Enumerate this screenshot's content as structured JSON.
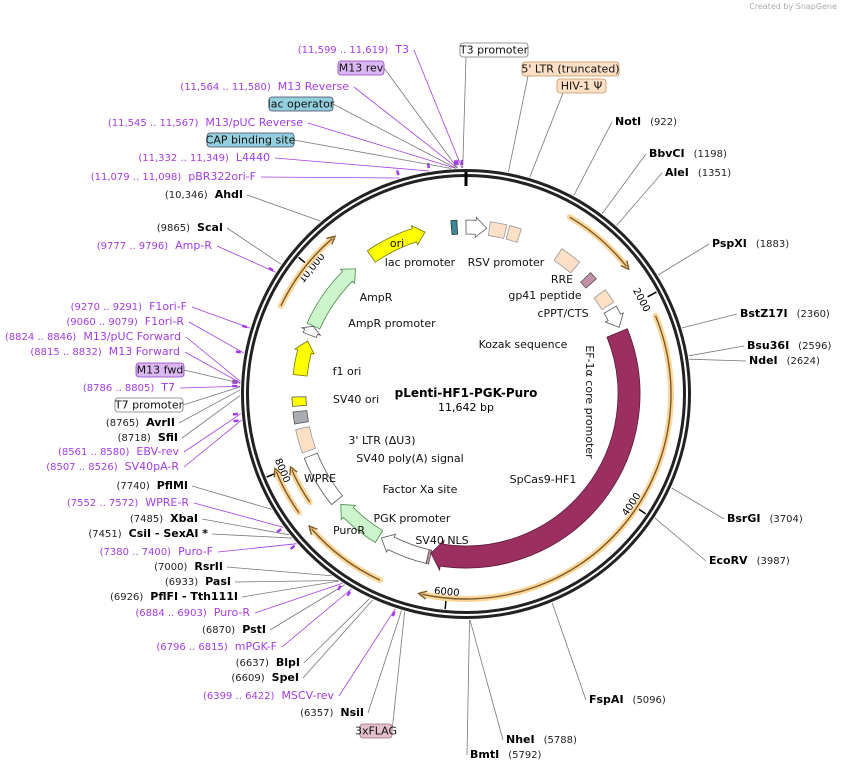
{
  "credit": "Created by SnapGene",
  "plasmid": {
    "name": "pLenti-HF1-PGK-Puro",
    "size_label": "11,642 bp",
    "total_bp": 11642
  },
  "ticks": [
    {
      "bp": 2000,
      "label": "2000"
    },
    {
      "bp": 4000,
      "label": "4000"
    },
    {
      "bp": 6000,
      "label": "6000"
    },
    {
      "bp": 8000,
      "label": "8000"
    },
    {
      "bp": 10000,
      "label": "10,000"
    }
  ],
  "enzymes_right": [
    {
      "name": "NotI",
      "pos": "(922)",
      "bp": 922
    },
    {
      "name": "BbvCI",
      "pos": "(1198)",
      "bp": 1198
    },
    {
      "name": "AleI",
      "pos": "(1351)",
      "bp": 1351
    },
    {
      "name": "PspXI",
      "pos": "(1883)",
      "bp": 1883
    },
    {
      "name": "BstZ17I",
      "pos": "(2360)",
      "bp": 2360
    },
    {
      "name": "Bsu36I",
      "pos": "(2596)",
      "bp": 2596
    },
    {
      "name": "NdeI",
      "pos": "(2624)",
      "bp": 2624
    },
    {
      "name": "BsrGI",
      "pos": "(3704)",
      "bp": 3704
    },
    {
      "name": "EcoRV",
      "pos": "(3987)",
      "bp": 3987
    },
    {
      "name": "FspAI",
      "pos": "(5096)",
      "bp": 5096
    },
    {
      "name": "NheI",
      "pos": "(5788)",
      "bp": 5788
    },
    {
      "name": "BmtI",
      "pos": "(5792)",
      "bp": 5792
    }
  ],
  "enzymes_left": [
    {
      "name": "AhdI",
      "pos": "(10,346)",
      "bp": 10346
    },
    {
      "name": "ScaI",
      "pos": "(9865)",
      "bp": 9865
    },
    {
      "name": "NsiI",
      "pos": "(6357)",
      "bp": 6357
    },
    {
      "name": "AvrII",
      "pos": "(8765)",
      "bp": 8765
    },
    {
      "name": "SfiI",
      "pos": "(8718)",
      "bp": 8718
    },
    {
      "name": "PflMI",
      "pos": "(7740)",
      "bp": 7740
    },
    {
      "name": "XbaI",
      "pos": "(7485)",
      "bp": 7485
    },
    {
      "name": "CsiI  - SexAI *",
      "pos": "(7451)",
      "bp": 7451
    },
    {
      "name": "RsrII",
      "pos": "(7000)",
      "bp": 7000
    },
    {
      "name": "PasI",
      "pos": "(6933)",
      "bp": 6933
    },
    {
      "name": "PflFI  - Tth111I",
      "pos": "(6926)",
      "bp": 6926
    },
    {
      "name": "PstI",
      "pos": "(6870)",
      "bp": 6870
    },
    {
      "name": "BlpI",
      "pos": "(6637)",
      "bp": 6637
    },
    {
      "name": "SpeI",
      "pos": "(6609)",
      "bp": 6609
    }
  ],
  "primers": [
    {
      "name": "T3",
      "range": "(11,599 .. 11,619)",
      "bp": 11609
    },
    {
      "name": "M13 Reverse",
      "range": "(11,564 .. 11,580)",
      "bp": 11572
    },
    {
      "name": "M13/pUC Reverse",
      "range": "(11,545 .. 11,567)",
      "bp": 11556
    },
    {
      "name": "L4440",
      "range": "(11,332 .. 11,349)",
      "bp": 11340
    },
    {
      "name": "pBR322ori-F",
      "range": "(11,079 .. 11,098)",
      "bp": 11088
    },
    {
      "name": "Amp-R",
      "range": "(9777 .. 9796)",
      "bp": 9786
    },
    {
      "name": "F1ori-F",
      "range": "(9270 .. 9291)",
      "bp": 9280
    },
    {
      "name": "F1ori-R",
      "range": "(9060 .. 9079)",
      "bp": 9070
    },
    {
      "name": "M13/pUC Forward",
      "range": "(8824 .. 8846)",
      "bp": 8835
    },
    {
      "name": "M13 Forward",
      "range": "(8815 .. 8832)",
      "bp": 8823
    },
    {
      "name": "T7",
      "range": "(8786 .. 8805)",
      "bp": 8795
    },
    {
      "name": "EBV-rev",
      "range": "(8561 .. 8580)",
      "bp": 8570
    },
    {
      "name": "SV40pA-R",
      "range": "(8507 .. 8526)",
      "bp": 8516
    },
    {
      "name": "WPRE-R",
      "range": "(7552 .. 7572)",
      "bp": 7562
    },
    {
      "name": "Puro-F",
      "range": "(7380 .. 7400)",
      "bp": 7390
    },
    {
      "name": "Puro-R",
      "range": "(6884 .. 6903)",
      "bp": 6893
    },
    {
      "name": "mPGK-F",
      "range": "(6796 .. 6815)",
      "bp": 6805
    },
    {
      "name": "MSCV-rev",
      "range": "(6399 .. 6422)",
      "bp": 6410
    }
  ],
  "boxed_labels": [
    {
      "name": "M13 rev",
      "bp": 11572,
      "fill": "#dcb8f2",
      "stroke": "#8a3cc0"
    },
    {
      "name": "lac operator",
      "bp": 11560,
      "fill": "#93cfdc",
      "stroke": "#446"
    },
    {
      "name": "CAP binding site",
      "bp": 11520,
      "fill": "#93cfdc",
      "stroke": "#446"
    },
    {
      "name": "T3 promoter",
      "bp": 11615,
      "fill": "#ffffff",
      "stroke": "#777"
    },
    {
      "name": "5' LTR (truncated)",
      "bp": 350,
      "fill": "#fde0c5",
      "stroke": "#c9905a"
    },
    {
      "name": "HIV-1 Ψ",
      "bp": 530,
      "fill": "#fde0c5",
      "stroke": "#c9905a"
    },
    {
      "name": "M13 fwd",
      "bp": 8820,
      "fill": "#dcb8f2",
      "stroke": "#8a3cc0"
    },
    {
      "name": "T7 promoter",
      "bp": 8790,
      "fill": "#ffffff",
      "stroke": "#777"
    },
    {
      "name": "3xFLAG",
      "bp": 6330,
      "fill": "#e3c0cc",
      "stroke": "#a06a80"
    }
  ],
  "features": [
    {
      "name": "ori",
      "start": 10525,
      "end": 11183,
      "shape": "arrow",
      "fill": "#ffff00",
      "stroke": "#777700"
    },
    {
      "name": "AmpR",
      "start": 9508,
      "end": 10303,
      "shape": "arrow",
      "fill": "#ccf5cc",
      "stroke": "#4a8a4a"
    },
    {
      "name": "AmpR promoter",
      "start": 9400,
      "end": 9505,
      "shape": "arrow",
      "fill": "#ffffff",
      "stroke": "#555"
    },
    {
      "name": "f1 ori",
      "start": 8940,
      "end": 9330,
      "shape": "arrow",
      "fill": "#ffff00",
      "stroke": "#777700"
    },
    {
      "name": "SV40 ori",
      "start": 8600,
      "end": 8700,
      "shape": "box",
      "fill": "#ffff00",
      "stroke": "#555"
    },
    {
      "name": "SV40 poly(A) signal",
      "start": 8410,
      "end": 8540,
      "shape": "box",
      "fill": "#a9adb3",
      "stroke": "#555"
    },
    {
      "name": "3' LTR (ΔU3)",
      "start": 8090,
      "end": 8350,
      "shape": "box",
      "fill": "#fde0c5",
      "stroke": "#999"
    },
    {
      "name": "WPRE",
      "start": 7455,
      "end": 8030,
      "shape": "box",
      "fill": "#ffffff",
      "stroke": "#555"
    },
    {
      "name": "PuroR",
      "start": 6836,
      "end": 7392,
      "shape": "arrow",
      "fill": "#ccf5cc",
      "stroke": "#4a8a4a"
    },
    {
      "name": "PGK promoter",
      "start": 6250,
      "end": 6806,
      "shape": "arrow",
      "fill": "#ffffff",
      "stroke": "#555"
    },
    {
      "name": "SV40 NLS",
      "start": 6222,
      "end": 6250,
      "shape": "box",
      "fill": "#c490a8",
      "stroke": "#555"
    },
    {
      "name": "SpCas9-HF1",
      "start": 2199,
      "end": 6222,
      "shape": "arrow",
      "fill": "#9b3060",
      "stroke": "#5a1a38",
      "wide": true
    },
    {
      "name": "EF-1α core promoter",
      "start": 1930,
      "end": 2150,
      "shape": "arrow",
      "fill": "#ffffff",
      "stroke": "#555"
    },
    {
      "name": "cPPT/CTS",
      "start": 1720,
      "end": 1880,
      "shape": "box",
      "fill": "#fde0c5",
      "stroke": "#999"
    },
    {
      "name": "gp41 peptide",
      "start": 1480,
      "end": 1570,
      "shape": "box",
      "fill": "#c490a8",
      "stroke": "#555"
    },
    {
      "name": "RRE",
      "start": 1080,
      "end": 1320,
      "shape": "box",
      "fill": "#fde0c5",
      "stroke": "#999"
    },
    {
      "name": "HIV-1 Ψ",
      "start": 470,
      "end": 600,
      "shape": "box",
      "fill": "#fde0c5",
      "stroke": "#999"
    },
    {
      "name": "5' LTR (truncated)",
      "start": 260,
      "end": 440,
      "shape": "box",
      "fill": "#fde0c5",
      "stroke": "#999"
    },
    {
      "name": "RSV promoter",
      "start": 0,
      "end": 230,
      "shape": "arrow",
      "fill": "#ffffff",
      "stroke": "#555"
    },
    {
      "name": "lac promoter",
      "start": 11480,
      "end": 11545,
      "shape": "box",
      "fill": "#3a8a9a",
      "stroke": "#333"
    }
  ],
  "feature_labels": [
    "ori",
    "lac promoter",
    "RSV promoter",
    "RRE",
    "gp41 peptide",
    "cPPT/CTS",
    "EF-1α core promoter",
    "Kozak sequence",
    "SpCas9-HF1",
    "SV40 NLS",
    "PGK promoter",
    "PuroR",
    "WPRE",
    "SV40 poly(A) signal",
    "3' LTR (ΔU3)",
    "Factor Xa site",
    "SV40 ori",
    "f1 ori",
    "AmpR promoter",
    "AmpR"
  ],
  "orfs": [
    {
      "start": 983,
      "end": 1698,
      "level": 0
    },
    {
      "start": 2186,
      "end": 6252,
      "level": 0
    },
    {
      "start": 6623,
      "end": 7435,
      "level": 0
    },
    {
      "start": 7587,
      "end": 8043,
      "level": 0
    },
    {
      "start": 7610,
      "end": 8000,
      "level": 1
    },
    {
      "start": 9554,
      "end": 10358,
      "level": 0
    }
  ]
}
